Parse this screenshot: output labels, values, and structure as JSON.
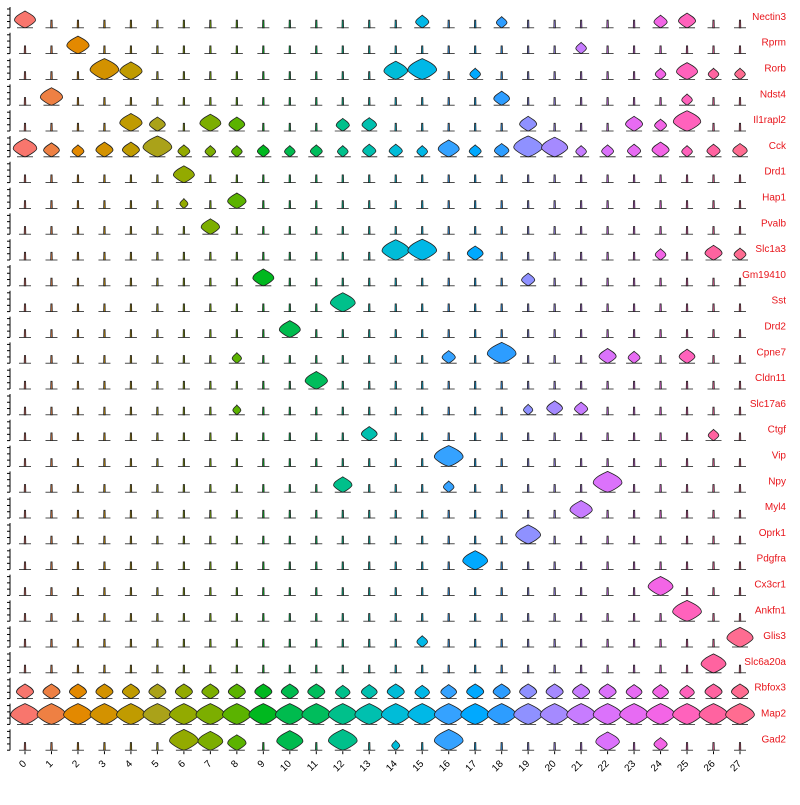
{
  "chart_data": {
    "type": "stacked-violin",
    "title": "",
    "xlabel": "",
    "ylabel": "",
    "clusters": [
      "0",
      "1",
      "2",
      "3",
      "4",
      "5",
      "6",
      "7",
      "8",
      "9",
      "10",
      "11",
      "12",
      "13",
      "14",
      "15",
      "16",
      "17",
      "18",
      "19",
      "20",
      "21",
      "22",
      "23",
      "24",
      "25",
      "26",
      "27"
    ],
    "cluster_colors": [
      "#F8766D",
      "#EE8043",
      "#E38900",
      "#D39200",
      "#C09B00",
      "#AAA219",
      "#93AA00",
      "#7CAE00",
      "#5BB300",
      "#00B81F",
      "#00BB4E",
      "#00BD5C",
      "#00C08B",
      "#00C0AF",
      "#00BCD8",
      "#00B8E7",
      "#35A2FF",
      "#00A9FF",
      "#2D9DFF",
      "#8F91FF",
      "#A58AFF",
      "#C77CFF",
      "#DB72FB",
      "#E76BF3",
      "#F365E6",
      "#FF62BC",
      "#FF63A0",
      "#FF6C91"
    ],
    "gene_label_color": "#E8151B",
    "genes": [
      "Nectin3",
      "Rprm",
      "Rorb",
      "Ndst4",
      "Il1rapl2",
      "Cck",
      "Drd1",
      "Hap1",
      "Pvalb",
      "Slc1a3",
      "Gm19410",
      "Sst",
      "Drd2",
      "Cpne7",
      "Cldn11",
      "Slc17a6",
      "Ctgf",
      "Vip",
      "Npy",
      "Myl4",
      "Oprk1",
      "Pdgfra",
      "Cx3cr1",
      "Ankfn1",
      "Glis3",
      "Slc6a20a",
      "Rbfox3",
      "Map2",
      "Gad2"
    ],
    "values": {
      "Nectin3": {
        "0": 0.7,
        "15": 0.4,
        "18": 0.3,
        "24": 0.4,
        "25": 0.55
      },
      "Rprm": {
        "2": 0.75,
        "21": 0.3
      },
      "Rorb": {
        "3": 1.0,
        "4": 0.75,
        "14": 0.8,
        "15": 1.0,
        "17": 0.3,
        "24": 0.3,
        "25": 0.7,
        "26": 0.3,
        "27": 0.3
      },
      "Ndst4": {
        "1": 0.75,
        "18": 0.5,
        "25": 0.3
      },
      "Il1rapl2": {
        "4": 0.75,
        "5": 0.5,
        "7": 0.7,
        "8": 0.5,
        "12": 0.4,
        "13": 0.45,
        "19": 0.55,
        "23": 0.55,
        "24": 0.35,
        "25": 0.95
      },
      "Cck": {
        "0": 0.8,
        "1": 0.5,
        "2": 0.35,
        "3": 0.55,
        "4": 0.55,
        "5": 1.0,
        "6": 0.35,
        "7": 0.3,
        "8": 0.3,
        "9": 0.35,
        "10": 0.3,
        "11": 0.35,
        "12": 0.3,
        "13": 0.4,
        "14": 0.4,
        "15": 0.3,
        "16": 0.7,
        "17": 0.35,
        "18": 0.45,
        "19": 1.0,
        "20": 0.9,
        "21": 0.3,
        "22": 0.35,
        "23": 0.4,
        "24": 0.55,
        "25": 0.3,
        "26": 0.4,
        "27": 0.45
      },
      "Drd1": {
        "6": 0.7
      },
      "Hap1": {
        "8": 0.6,
        "6": 0.2
      },
      "Pvalb": {
        "7": 0.6
      },
      "Slc1a3": {
        "14": 0.95,
        "15": 1.0,
        "17": 0.5,
        "24": 0.3,
        "26": 0.55,
        "27": 0.35
      },
      "Gm19410": {
        "9": 0.7,
        "19": 0.4
      },
      "Sst": {
        "12": 0.85
      },
      "Drd2": {
        "10": 0.7
      },
      "Cpne7": {
        "18": 1.0,
        "22": 0.55,
        "23": 0.35,
        "25": 0.5,
        "16": 0.4,
        "8": 0.25
      },
      "Cldn11": {
        "11": 0.75
      },
      "Slc17a6": {
        "20": 0.5,
        "21": 0.4,
        "19": 0.25,
        "8": 0.2
      },
      "Ctgf": {
        "13": 0.5,
        "26": 0.3
      },
      "Vip": {
        "16": 1.0
      },
      "Npy": {
        "12": 0.6,
        "22": 1.0,
        "16": 0.3
      },
      "Myl4": {
        "21": 0.75
      },
      "Oprk1": {
        "19": 0.85
      },
      "Pdgfra": {
        "17": 0.85
      },
      "Cx3cr1": {
        "24": 0.85
      },
      "Ankfn1": {
        "25": 1.0
      },
      "Glis3": {
        "27": 0.9,
        "15": 0.3
      },
      "Slc6a20a": {
        "26": 0.85
      },
      "Rbfox3": {
        "0": 0.55,
        "1": 0.55,
        "2": 0.55,
        "3": 0.55,
        "4": 0.55,
        "5": 0.55,
        "6": 0.55,
        "7": 0.55,
        "8": 0.55,
        "9": 0.55,
        "10": 0.55,
        "11": 0.55,
        "12": 0.45,
        "13": 0.5,
        "14": 0.55,
        "15": 0.45,
        "16": 0.5,
        "17": 0.55,
        "18": 0.55,
        "19": 0.55,
        "20": 0.55,
        "21": 0.55,
        "22": 0.55,
        "23": 0.5,
        "24": 0.5,
        "25": 0.45,
        "26": 0.55,
        "27": 0.55
      },
      "Map2": {
        "0": 1.0,
        "1": 1.0,
        "2": 1.0,
        "3": 1.0,
        "4": 1.0,
        "5": 1.0,
        "6": 1.0,
        "7": 1.0,
        "8": 1.0,
        "9": 1.0,
        "10": 1.0,
        "11": 1.0,
        "12": 1.0,
        "13": 1.0,
        "14": 1.0,
        "15": 1.0,
        "16": 1.0,
        "17": 1.0,
        "18": 1.0,
        "19": 1.0,
        "20": 1.0,
        "21": 1.0,
        "22": 1.0,
        "23": 1.0,
        "24": 1.0,
        "25": 1.0,
        "26": 1.0,
        "27": 1.0
      },
      "Gad2": {
        "6": 1.0,
        "7": 0.85,
        "8": 0.6,
        "10": 0.9,
        "12": 1.0,
        "16": 1.0,
        "22": 0.8,
        "24": 0.4,
        "14": 0.2
      }
    }
  }
}
